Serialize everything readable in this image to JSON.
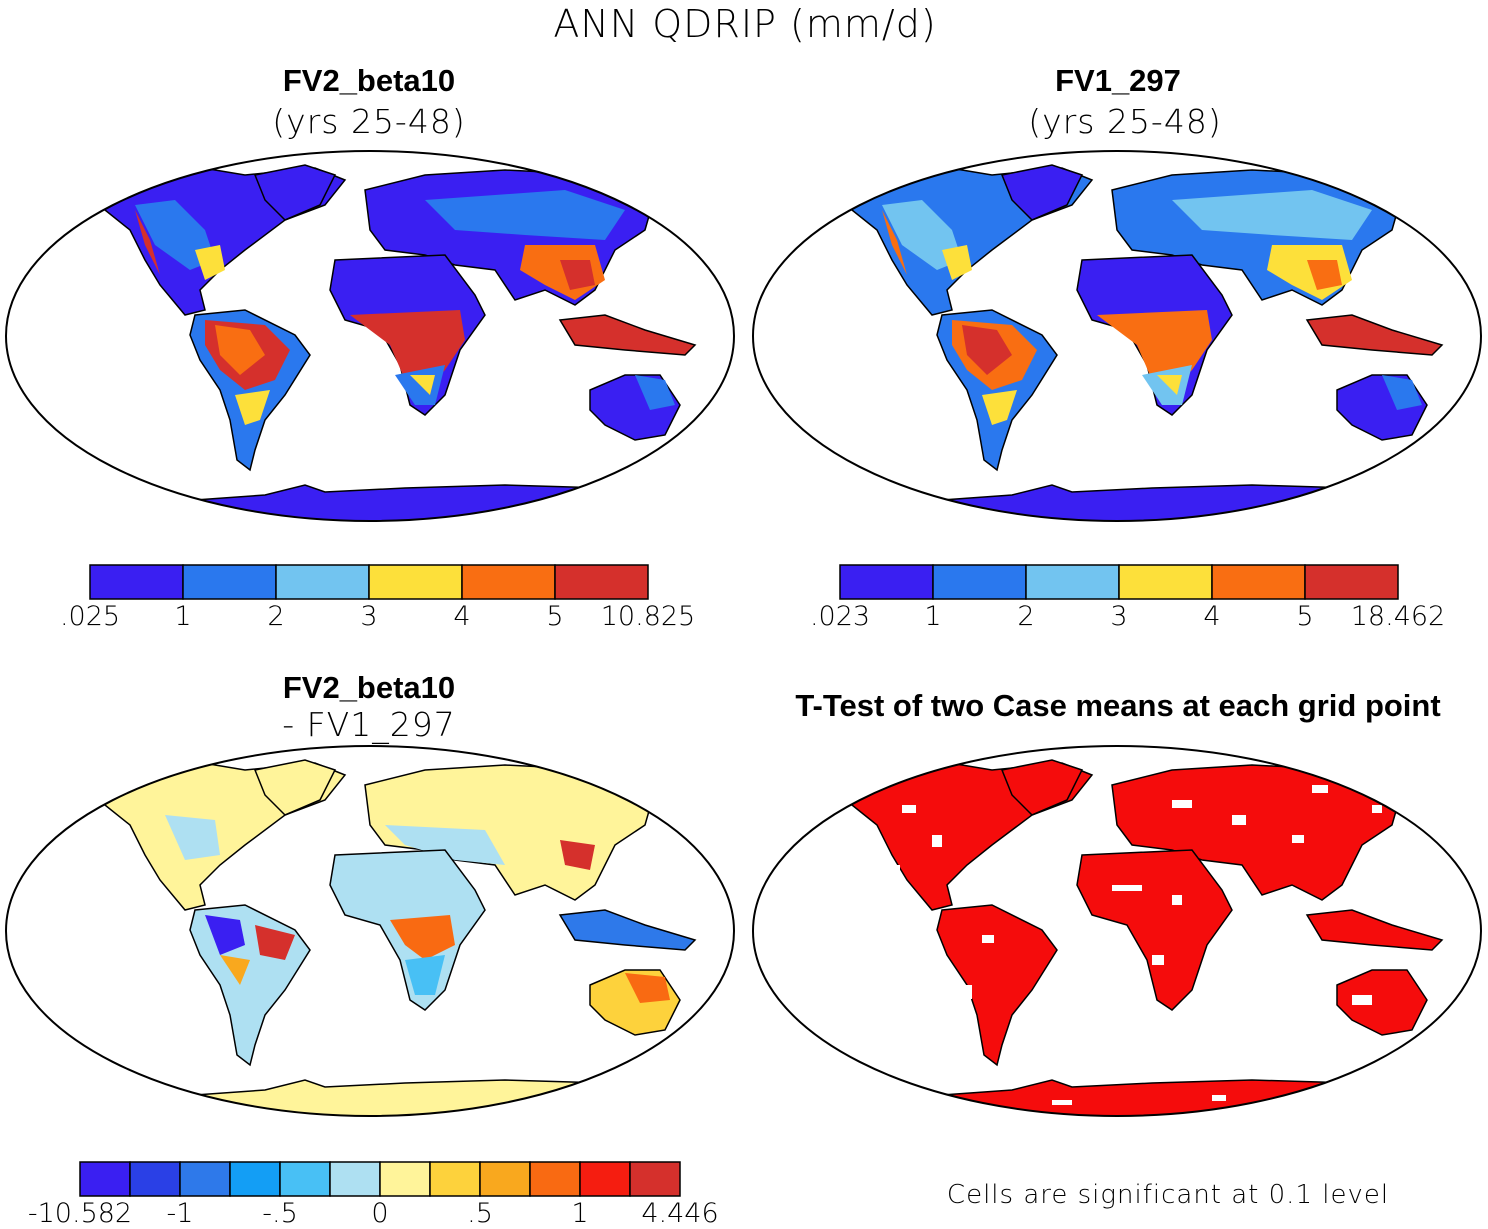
{
  "figure": {
    "title": "ANN QDRIP (mm/d)"
  },
  "panels": [
    {
      "id": "fv2",
      "title": "FV2_beta10",
      "subtitle": "(yrs 25-48)",
      "colorbar": {
        "tick_labels": [
          ".025",
          "1",
          "2",
          "3",
          "4",
          "5",
          "10.825"
        ],
        "colors": [
          "#3a1ff2",
          "#2a78ee",
          "#72c4f0",
          "#fde03a",
          "#f96e12",
          "#d5302c"
        ]
      }
    },
    {
      "id": "fv1",
      "title": "FV1_297",
      "subtitle": "(yrs 25-48)",
      "colorbar": {
        "tick_labels": [
          ".023",
          "1",
          "2",
          "3",
          "4",
          "5",
          "18.462"
        ],
        "colors": [
          "#3a1ff2",
          "#2a78ee",
          "#72c4f0",
          "#fde03a",
          "#f96e12",
          "#d5302c"
        ]
      }
    },
    {
      "id": "diff",
      "title": "FV2_beta10",
      "subtitle": "- FV1_297",
      "colorbar": {
        "tick_labels": [
          "-10.582",
          "-1",
          "-.5",
          "0",
          ".5",
          "1",
          "4.446"
        ],
        "colors": [
          "#3a1ff2",
          "#2a40e6",
          "#2e79ea",
          "#139ef5",
          "#48c0f5",
          "#aee0f2",
          "#fff49a",
          "#fdd23c",
          "#f9a81e",
          "#f96a12",
          "#f51d10",
          "#d5302c"
        ]
      }
    },
    {
      "id": "ttest",
      "title": "T-Test of two Case means at each grid point",
      "note": "Cells are significant at 0.1 level",
      "fill_color": "#f50c0c"
    }
  ],
  "map_colors": {
    "outline": "#000000",
    "ocean": "#ffffff"
  }
}
